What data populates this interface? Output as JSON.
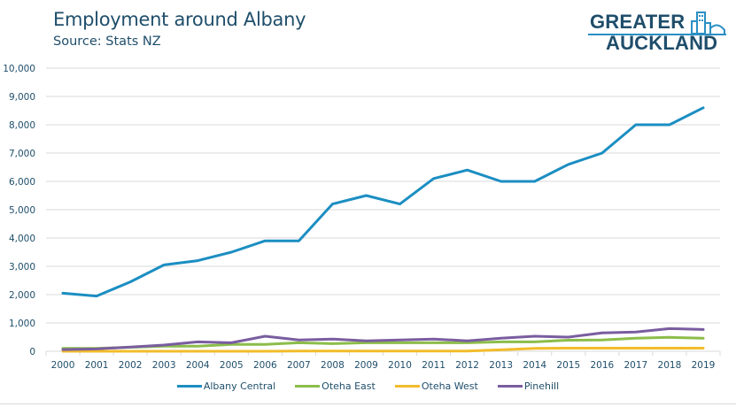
{
  "header": {
    "title": "Employment around Albany",
    "subtitle": "Source: Stats NZ"
  },
  "logo": {
    "line1": "GREATER",
    "line2": "AUCKLAND",
    "icon": "city-buildings-icon",
    "text_color": "#1f4e6b",
    "accent_color": "#2a8fc4"
  },
  "chart_data": {
    "type": "line",
    "title": "Employment around Albany",
    "subtitle": "Source: Stats NZ",
    "xlabel": "",
    "ylabel": "",
    "ylim": [
      0,
      10000
    ],
    "y_ticks": [
      "0",
      "1,000",
      "2,000",
      "3,000",
      "4,000",
      "5,000",
      "6,000",
      "7,000",
      "8,000",
      "9,000",
      "10,000"
    ],
    "y_tick_values": [
      0,
      1000,
      2000,
      3000,
      4000,
      5000,
      6000,
      7000,
      8000,
      9000,
      10000
    ],
    "grid": true,
    "legend_position": "bottom",
    "x": [
      "2000",
      "2001",
      "2002",
      "2003",
      "2004",
      "2005",
      "2006",
      "2007",
      "2008",
      "2009",
      "2010",
      "2011",
      "2012",
      "2013",
      "2014",
      "2015",
      "2016",
      "2017",
      "2018",
      "2019"
    ],
    "series": [
      {
        "name": "Albany Central",
        "color": "#1b8ec2",
        "values": [
          2050,
          1950,
          2450,
          3050,
          3200,
          3500,
          3900,
          3900,
          5200,
          5500,
          5200,
          6100,
          6400,
          6000,
          6000,
          6600,
          7000,
          8000,
          8000,
          8600
        ]
      },
      {
        "name": "Oteha East",
        "color": "#8cbd4a",
        "values": [
          100,
          100,
          140,
          180,
          180,
          240,
          240,
          300,
          270,
          300,
          300,
          300,
          300,
          330,
          330,
          390,
          400,
          460,
          490,
          460
        ]
      },
      {
        "name": "Oteha West",
        "color": "#f2bc2a",
        "values": [
          0,
          0,
          0,
          0,
          0,
          0,
          0,
          10,
          10,
          10,
          10,
          10,
          10,
          50,
          100,
          110,
          110,
          110,
          110,
          110
        ]
      },
      {
        "name": "Pinehill",
        "color": "#7a5da0",
        "values": [
          60,
          80,
          150,
          220,
          330,
          300,
          530,
          400,
          430,
          370,
          400,
          430,
          370,
          460,
          530,
          500,
          650,
          680,
          800,
          770
        ]
      }
    ]
  }
}
